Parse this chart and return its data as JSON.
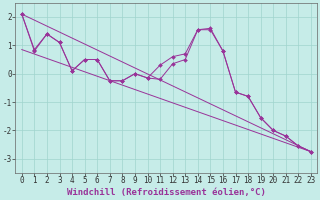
{
  "title": "",
  "xlabel": "Windchill (Refroidissement éolien,°C)",
  "ylabel": "",
  "background_color": "#c6ece8",
  "grid_color": "#a0d4ce",
  "line_color": "#993399",
  "xlim": [
    -0.5,
    23.5
  ],
  "ylim": [
    -3.5,
    2.5
  ],
  "yticks": [
    -3,
    -2,
    -1,
    0,
    1,
    2
  ],
  "xticks": [
    0,
    1,
    2,
    3,
    4,
    5,
    6,
    7,
    8,
    9,
    10,
    11,
    12,
    13,
    14,
    15,
    16,
    17,
    18,
    19,
    20,
    21,
    22,
    23
  ],
  "series": [
    {
      "x": [
        0,
        1,
        2,
        3,
        4,
        5,
        6,
        7,
        8,
        9,
        10,
        11,
        12,
        13,
        14,
        15,
        16,
        17,
        18,
        19,
        20,
        21,
        22,
        23
      ],
      "y": [
        2.1,
        0.8,
        1.4,
        1.1,
        0.1,
        0.5,
        0.5,
        -0.25,
        -0.25,
        0.0,
        -0.15,
        -0.2,
        0.35,
        0.5,
        1.55,
        1.55,
        0.8,
        -0.65,
        -0.8,
        -1.55,
        -2.0,
        -2.2,
        -2.55,
        -2.75
      ],
      "has_markers": true
    },
    {
      "x": [
        0,
        1,
        2,
        3,
        4,
        5,
        6,
        7,
        8,
        9,
        10,
        11,
        12,
        13,
        14,
        15,
        16,
        17,
        18,
        19,
        20,
        21,
        22,
        23
      ],
      "y": [
        2.1,
        0.85,
        1.4,
        1.1,
        0.1,
        0.5,
        0.5,
        -0.25,
        -0.25,
        0.0,
        -0.15,
        0.3,
        0.6,
        0.7,
        1.55,
        1.6,
        0.8,
        -0.65,
        -0.8,
        -1.55,
        -2.0,
        -2.2,
        -2.55,
        -2.75
      ],
      "has_markers": true
    },
    {
      "x": [
        0,
        23
      ],
      "y": [
        2.1,
        -2.75
      ],
      "has_markers": false
    },
    {
      "x": [
        0,
        23
      ],
      "y": [
        0.85,
        -2.75
      ],
      "has_markers": false
    }
  ],
  "xlabel_fontsize": 6.5,
  "tick_fontsize": 5.5,
  "marker_size": 2.0,
  "linewidth": 0.7
}
